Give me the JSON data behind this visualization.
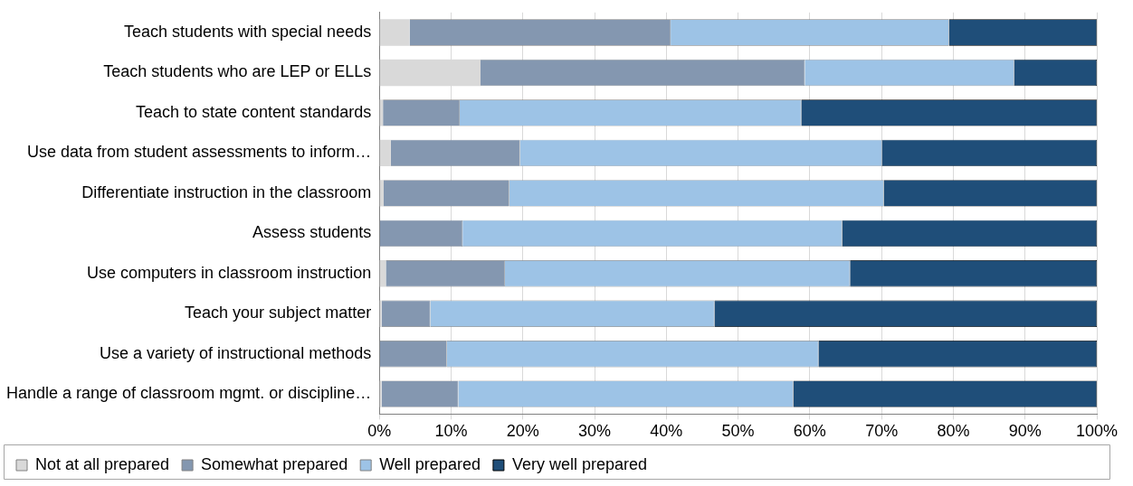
{
  "chart_data": {
    "type": "bar",
    "orientation": "horizontal",
    "stacked": true,
    "categories": [
      "Teach students with special needs",
      "Teach students who are LEP or ELLs",
      "Teach to state content standards",
      "Use data from student assessments to inform…",
      "Differentiate instruction in the classroom",
      "Assess students",
      "Use computers in classroom instruction",
      "Teach your subject matter",
      "Use a variety of instructional methods",
      "Handle a range of classroom mgmt. or discipline…"
    ],
    "series": [
      {
        "name": "Not at all prepared",
        "color": "#d9d9d9",
        "values": [
          4.2,
          14.1,
          0.5,
          1.6,
          0.6,
          0,
          0.9,
          0.3,
          0,
          0.3
        ]
      },
      {
        "name": "Somewhat prepared",
        "color": "#8497b0",
        "values": [
          36.4,
          45.2,
          10.7,
          18.0,
          17.5,
          11.6,
          16.6,
          6.8,
          9.4,
          10.7
        ]
      },
      {
        "name": "Well prepared",
        "color": "#9dc3e6",
        "values": [
          38.8,
          29.2,
          47.6,
          50.5,
          52.2,
          52.9,
          48.1,
          39.6,
          51.8,
          46.7
        ]
      },
      {
        "name": "Very well prepared",
        "color": "#1f4e79",
        "values": [
          20.6,
          11.5,
          41.2,
          29.9,
          29.7,
          35.5,
          34.4,
          53.3,
          38.8,
          42.3
        ]
      }
    ],
    "xlim": [
      0,
      100
    ],
    "xticks": [
      {
        "value": 0,
        "label": "0%"
      },
      {
        "value": 10,
        "label": "10%"
      },
      {
        "value": 20,
        "label": "20%"
      },
      {
        "value": 30,
        "label": "30%"
      },
      {
        "value": 40,
        "label": "40%"
      },
      {
        "value": 50,
        "label": "50%"
      },
      {
        "value": 60,
        "label": "60%"
      },
      {
        "value": 70,
        "label": "70%"
      },
      {
        "value": 80,
        "label": "80%"
      },
      {
        "value": 90,
        "label": "90%"
      },
      {
        "value": 100,
        "label": "100%"
      }
    ],
    "grid": "x",
    "legend": "bottom"
  }
}
